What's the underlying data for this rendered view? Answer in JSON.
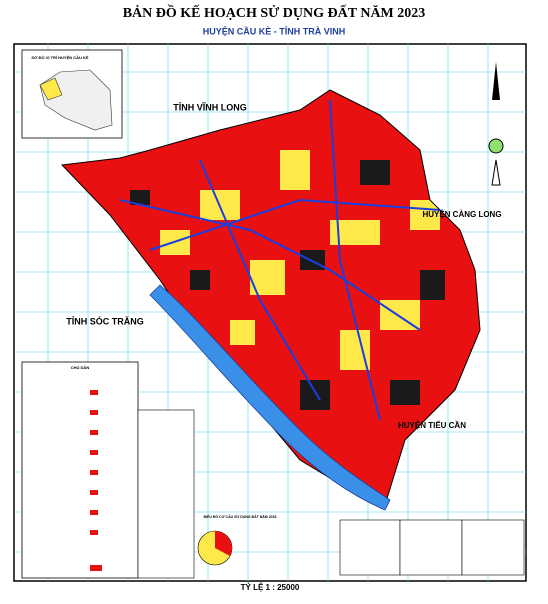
{
  "header": {
    "title": "BẢN ĐỒ KẾ HOẠCH SỬ DỤNG ĐẤT NĂM 2023",
    "subtitle": "HUYỆN CẦU KÈ - TỈNH TRÀ VINH"
  },
  "map": {
    "labels": [
      "TỈNH VĨNH LONG",
      "HUYỆN CÀNG LONG",
      "TỈNH SÓC TRĂNG",
      "HUYỆN TIỂU CẦN"
    ],
    "scale": "TỶ LỆ 1 : 25000"
  },
  "inset": {
    "title": "SƠ ĐỒ VỊ TRÍ HUYỆN CẦU KÈ"
  },
  "legend": {
    "title": "CHÚ DẪN"
  },
  "pie": {
    "title": "BIỂU ĐỒ CƠ CẤU SỬ DỤNG ĐẤT NĂM 2023"
  }
}
